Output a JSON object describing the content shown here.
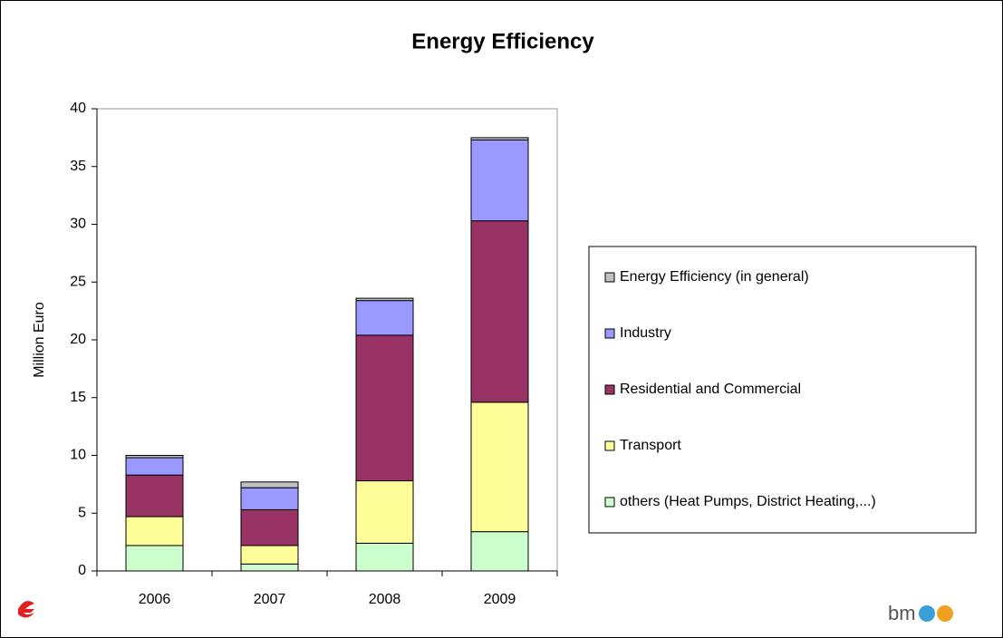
{
  "chart_data": {
    "type": "bar",
    "stacked": true,
    "title": "Energy Efficiency",
    "y_label": "Million Euro",
    "categories": [
      "2006",
      "2007",
      "2008",
      "2009"
    ],
    "series": [
      {
        "name": "others (Heat Pumps, District Heating,...)",
        "color": "#ccffcc",
        "values": [
          2.2,
          0.6,
          2.4,
          3.4
        ]
      },
      {
        "name": "Transport",
        "color": "#ffff99",
        "values": [
          2.5,
          1.6,
          5.4,
          11.2
        ]
      },
      {
        "name": "Residential and Commercial",
        "color": "#993366",
        "values": [
          3.6,
          3.1,
          12.6,
          15.7
        ]
      },
      {
        "name": "Industry",
        "color": "#9999ff",
        "values": [
          1.5,
          1.9,
          3.0,
          7.0
        ]
      },
      {
        "name": "Energy Efficiency (in general)",
        "color": "#c0c0c0",
        "values": [
          0.2,
          0.5,
          0.2,
          0.2
        ]
      }
    ],
    "ylim": [
      0,
      40
    ],
    "yticks": [
      0,
      5,
      10,
      15,
      20,
      25,
      30,
      35,
      40
    ],
    "legend": "right"
  },
  "logo_text": "bm"
}
